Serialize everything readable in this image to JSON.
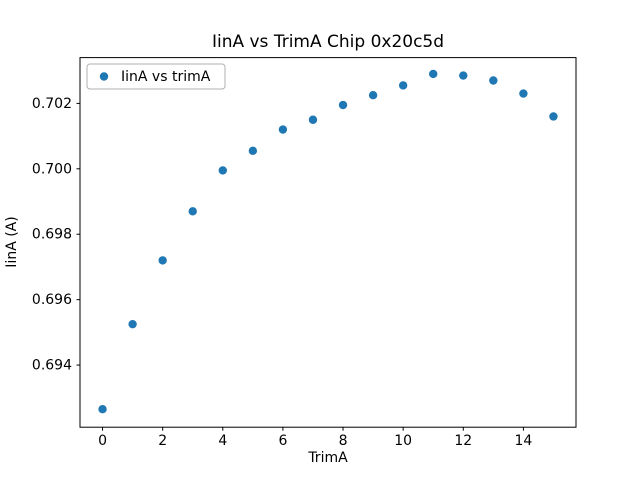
{
  "chart_data": {
    "type": "scatter",
    "title": "IinA vs TrimA Chip 0x20c5d",
    "xlabel": "TrimA",
    "ylabel": "IinA (A)",
    "legend_label": "IinA vs trimA",
    "marker_color": "#1f77b4",
    "x": [
      0,
      1,
      2,
      3,
      4,
      5,
      6,
      7,
      8,
      9,
      10,
      11,
      12,
      13,
      14,
      15
    ],
    "y": [
      0.69265,
      0.69525,
      0.6972,
      0.6987,
      0.69995,
      0.70055,
      0.7012,
      0.7015,
      0.70195,
      0.70225,
      0.70255,
      0.7029,
      0.70285,
      0.7027,
      0.7023,
      0.7016
    ],
    "xlim": [
      -0.75,
      15.75
    ],
    "ylim": [
      0.6921,
      0.7034
    ],
    "xticks": [
      0,
      2,
      4,
      6,
      8,
      10,
      12,
      14
    ],
    "xtick_labels": [
      "0",
      "2",
      "4",
      "6",
      "8",
      "10",
      "12",
      "14"
    ],
    "yticks": [
      0.694,
      0.696,
      0.698,
      0.7,
      0.702
    ],
    "ytick_labels": [
      "0.694",
      "0.696",
      "0.698",
      "0.700",
      "0.702"
    ],
    "grid": false,
    "legend_position": "upper left"
  }
}
